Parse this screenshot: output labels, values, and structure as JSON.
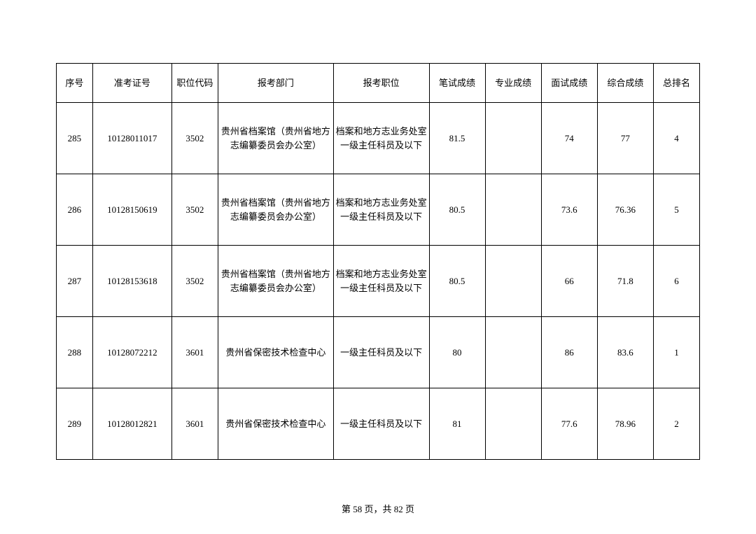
{
  "table": {
    "headers": [
      "序号",
      "准考证号",
      "职位代码",
      "报考部门",
      "报考职位",
      "笔试成绩",
      "专业成绩",
      "面试成绩",
      "综合成绩",
      "总排名"
    ],
    "rows": [
      [
        "285",
        "10128011017",
        "3502",
        "贵州省档案馆（贵州省地方志编纂委员会办公室）",
        "档案和地方志业务处室一级主任科员及以下",
        "81.5",
        "",
        "74",
        "77",
        "4"
      ],
      [
        "286",
        "10128150619",
        "3502",
        "贵州省档案馆（贵州省地方志编纂委员会办公室）",
        "档案和地方志业务处室一级主任科员及以下",
        "80.5",
        "",
        "73.6",
        "76.36",
        "5"
      ],
      [
        "287",
        "10128153618",
        "3502",
        "贵州省档案馆（贵州省地方志编纂委员会办公室）",
        "档案和地方志业务处室一级主任科员及以下",
        "80.5",
        "",
        "66",
        "71.8",
        "6"
      ],
      [
        "288",
        "10128072212",
        "3601",
        "贵州省保密技术检查中心",
        "一级主任科员及以下",
        "80",
        "",
        "86",
        "83.6",
        "1"
      ],
      [
        "289",
        "10128012821",
        "3601",
        "贵州省保密技术检查中心",
        "一级主任科员及以下",
        "81",
        "",
        "77.6",
        "78.96",
        "2"
      ]
    ]
  },
  "footer": {
    "prefix": "第 ",
    "page": "58",
    "mid": " 页，共 ",
    "total": "82",
    "suffix": " 页"
  }
}
